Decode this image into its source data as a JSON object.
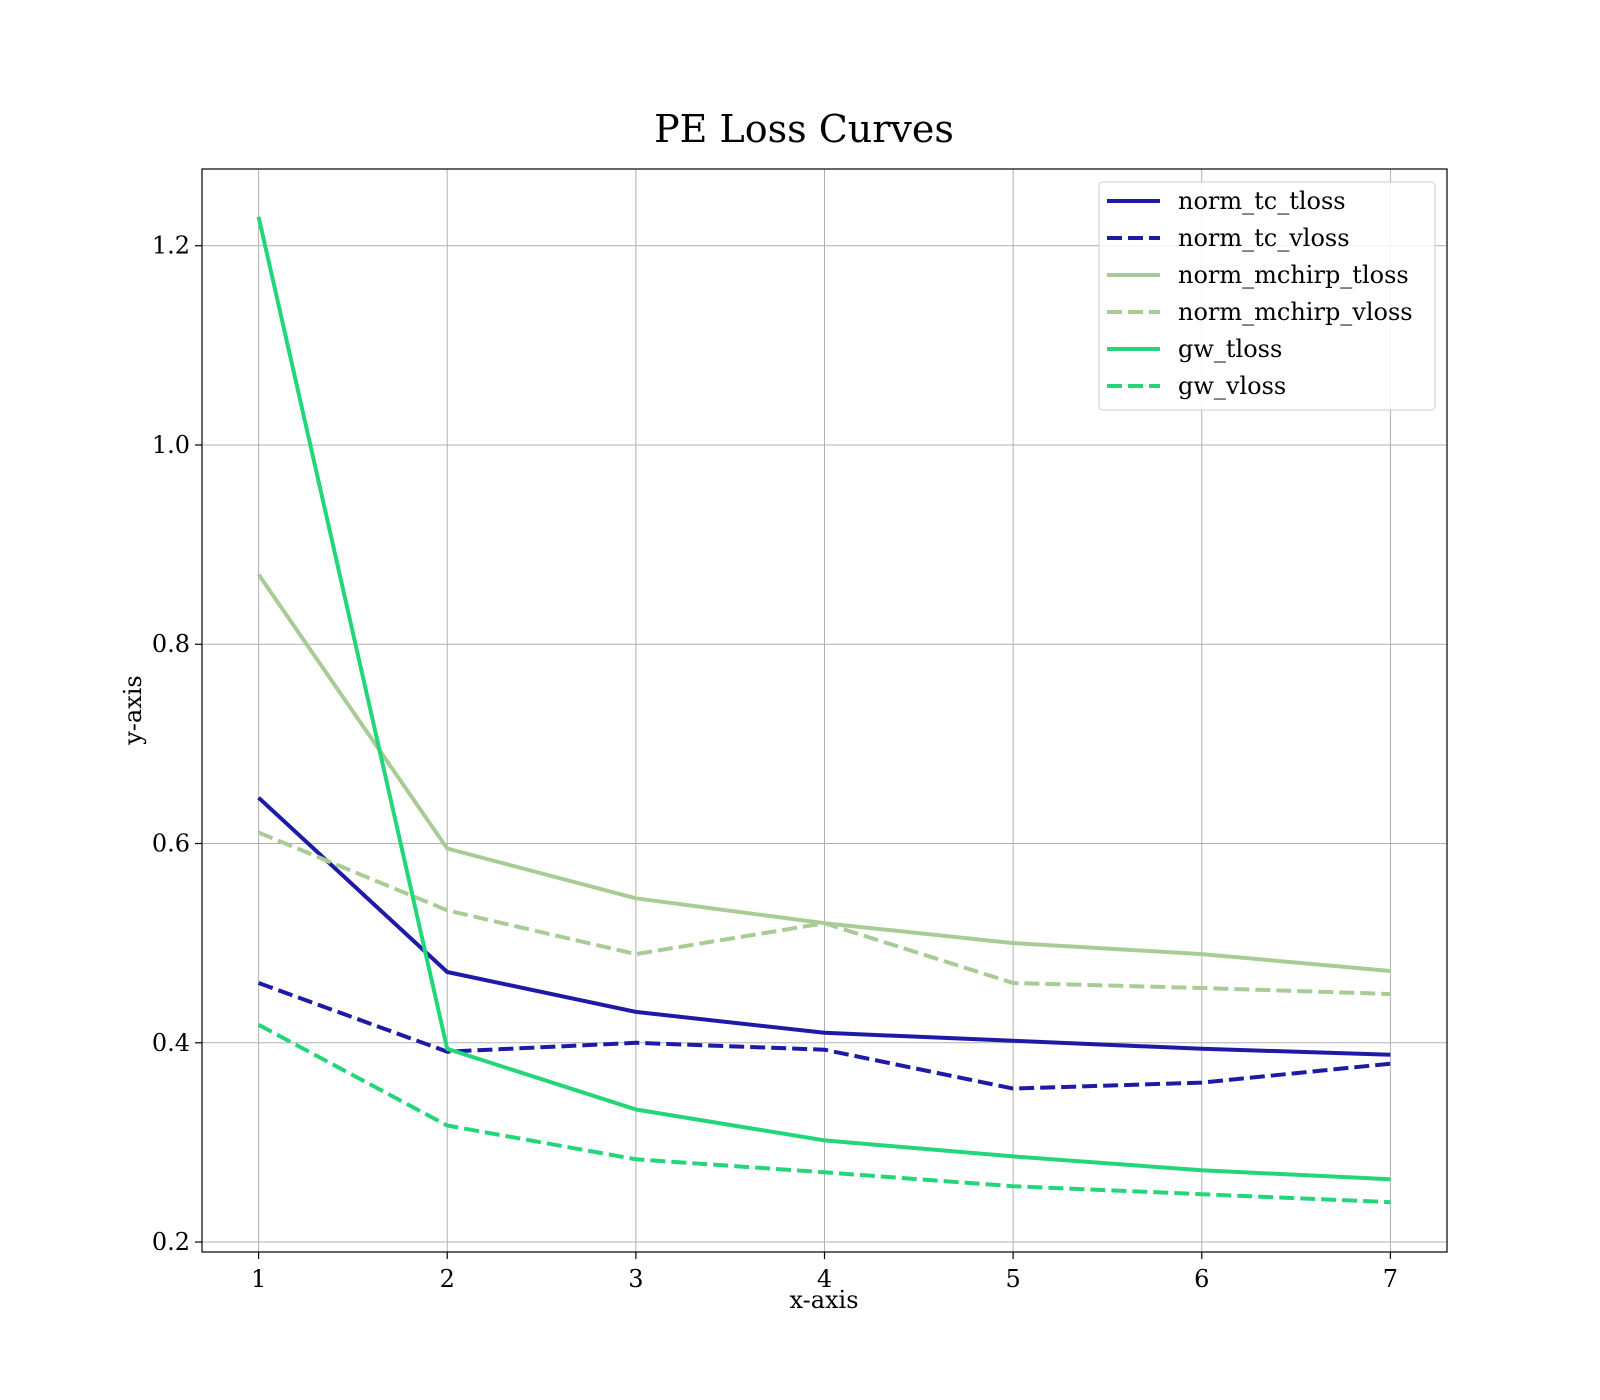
{
  "chart_data": {
    "type": "line",
    "title": "PE Loss Curves",
    "xlabel": "x-axis",
    "ylabel": "y-axis",
    "x": [
      1,
      2,
      3,
      4,
      5,
      6,
      7
    ],
    "xlim": [
      0.7,
      7.3
    ],
    "ylim": [
      0.19,
      1.277
    ],
    "xticks": [
      1,
      2,
      3,
      4,
      5,
      6,
      7
    ],
    "yticks": [
      0.2,
      0.4,
      0.6,
      0.8,
      1.0,
      1.2
    ],
    "ytick_labels": [
      "0.2",
      "0.4",
      "0.6",
      "0.8",
      "1.0",
      "1.2"
    ],
    "grid": true,
    "legend_position": "top-right",
    "series": [
      {
        "name": "norm_tc_tloss",
        "color": "#1f1aa6",
        "dash": "solid",
        "values": [
          0.646,
          0.471,
          0.431,
          0.41,
          0.402,
          0.394,
          0.388
        ]
      },
      {
        "name": "norm_tc_vloss",
        "color": "#1f1aa6",
        "dash": "dashed",
        "values": [
          0.46,
          0.391,
          0.4,
          0.393,
          0.354,
          0.36,
          0.379
        ]
      },
      {
        "name": "norm_mchirp_tloss",
        "color": "#a9cc96",
        "dash": "solid",
        "values": [
          0.87,
          0.595,
          0.545,
          0.52,
          0.5,
          0.489,
          0.472
        ]
      },
      {
        "name": "norm_mchirp_vloss",
        "color": "#a9cc96",
        "dash": "dashed",
        "values": [
          0.611,
          0.533,
          0.489,
          0.52,
          0.46,
          0.455,
          0.449
        ]
      },
      {
        "name": "gw_tloss",
        "color": "#24d67a",
        "dash": "solid",
        "values": [
          1.229,
          0.394,
          0.333,
          0.302,
          0.286,
          0.272,
          0.263
        ]
      },
      {
        "name": "gw_vloss",
        "color": "#24d67a",
        "dash": "dashed",
        "values": [
          0.418,
          0.317,
          0.283,
          0.27,
          0.256,
          0.248,
          0.24
        ]
      }
    ]
  }
}
